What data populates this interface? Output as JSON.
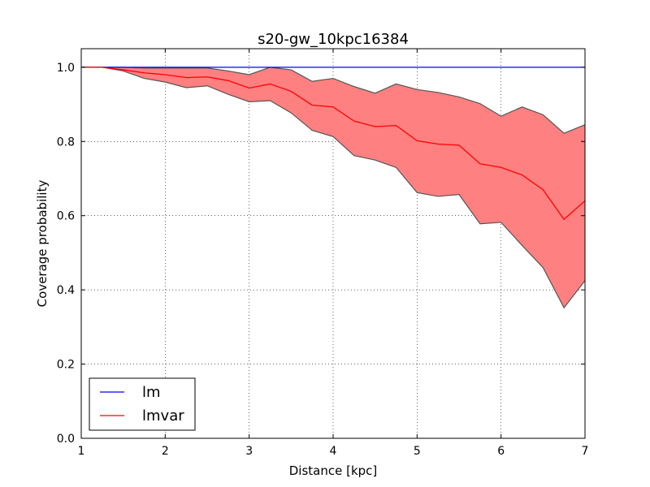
{
  "chart_data": {
    "type": "line",
    "title": "s20-gw_10kpc16384",
    "xlabel": "Distance [kpc]",
    "ylabel": "Coverage probability",
    "xlim": [
      1,
      7
    ],
    "ylim": [
      0.0,
      1.05
    ],
    "xticks": [
      "1",
      "2",
      "3",
      "4",
      "5",
      "6",
      "7"
    ],
    "yticks": [
      "0.0",
      "0.2",
      "0.4",
      "0.6",
      "0.8",
      "1.0"
    ],
    "grid": true,
    "legend_position": "lower-left",
    "x": [
      1.0,
      1.25,
      1.5,
      1.75,
      2.0,
      2.25,
      2.5,
      2.75,
      3.0,
      3.25,
      3.5,
      3.75,
      4.0,
      4.25,
      4.5,
      4.75,
      5.0,
      5.25,
      5.5,
      5.75,
      6.0,
      6.25,
      6.5,
      6.75,
      7.0
    ],
    "series": [
      {
        "name": "lm",
        "color": "#0000ff",
        "values": [
          1.0,
          1.0,
          1.0,
          1.0,
          1.0,
          1.0,
          1.0,
          1.0,
          1.0,
          1.0,
          1.0,
          1.0,
          1.0,
          1.0,
          1.0,
          1.0,
          1.0,
          1.0,
          1.0,
          1.0,
          1.0,
          1.0,
          1.0,
          1.0,
          1.0
        ]
      },
      {
        "name": "lmvar",
        "color": "#ff0000",
        "values": [
          1.0,
          1.0,
          0.993,
          0.985,
          0.98,
          0.972,
          0.974,
          0.964,
          0.944,
          0.955,
          0.935,
          0.898,
          0.893,
          0.855,
          0.84,
          0.843,
          0.802,
          0.793,
          0.79,
          0.74,
          0.73,
          0.71,
          0.67,
          0.59,
          0.64
        ],
        "band_upper": [
          1.0,
          1.0,
          1.0,
          0.998,
          0.998,
          0.998,
          0.998,
          0.99,
          0.98,
          1.0,
          0.993,
          0.962,
          0.97,
          0.948,
          0.93,
          0.955,
          0.94,
          0.932,
          0.92,
          0.902,
          0.868,
          0.893,
          0.872,
          0.822,
          0.845
        ],
        "band_lower": [
          1.0,
          1.0,
          0.99,
          0.97,
          0.96,
          0.945,
          0.95,
          0.927,
          0.907,
          0.91,
          0.877,
          0.83,
          0.813,
          0.762,
          0.75,
          0.73,
          0.662,
          0.652,
          0.657,
          0.578,
          0.582,
          0.52,
          0.46,
          0.352,
          0.425
        ]
      }
    ],
    "band_color": "#ff8080",
    "band_edge_color": "#555555"
  }
}
